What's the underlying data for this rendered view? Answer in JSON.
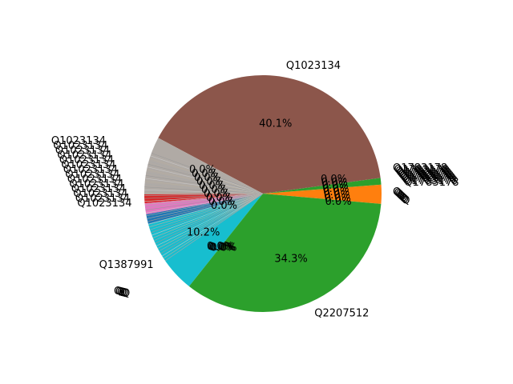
{
  "chart_data": {
    "type": "pie",
    "slices": [
      {
        "label": "Q1023134",
        "value": 40.1,
        "pct_label": "40.1%",
        "color": "#8c564b"
      },
      {
        "label": "Q2207512",
        "value": 34.3,
        "pct_label": "34.3%",
        "color": "#2ca02c"
      },
      {
        "label": "Q1387991",
        "value": 10.2,
        "pct_label": "10.2%",
        "color": "#17becf"
      },
      {
        "label": "",
        "value": 2.6,
        "pct_label": "",
        "color": "#ff7f0e"
      },
      {
        "label": "",
        "value": 0.9,
        "pct_label": "",
        "color": "#2ca02c"
      },
      {
        "label": "",
        "value": 1.2,
        "pct_label": "",
        "color": "#d62728"
      },
      {
        "label": "",
        "value": 1.5,
        "pct_label": "",
        "color": "#e377c2"
      },
      {
        "label": "",
        "value": 1.3,
        "pct_label": "",
        "color": "#1f77b4"
      },
      {
        "label": "",
        "value": 7.9,
        "pct_label": "",
        "color": "#b0aaa5"
      }
    ],
    "visible_labels": [
      "Q1023134",
      "Q2207512",
      "Q1387991",
      "Q1783178",
      "Q"
    ],
    "repeated_small_pct_label": "0.0%",
    "start_angle": 0,
    "direction": "counterclockwise",
    "legend": "none",
    "title": ""
  }
}
